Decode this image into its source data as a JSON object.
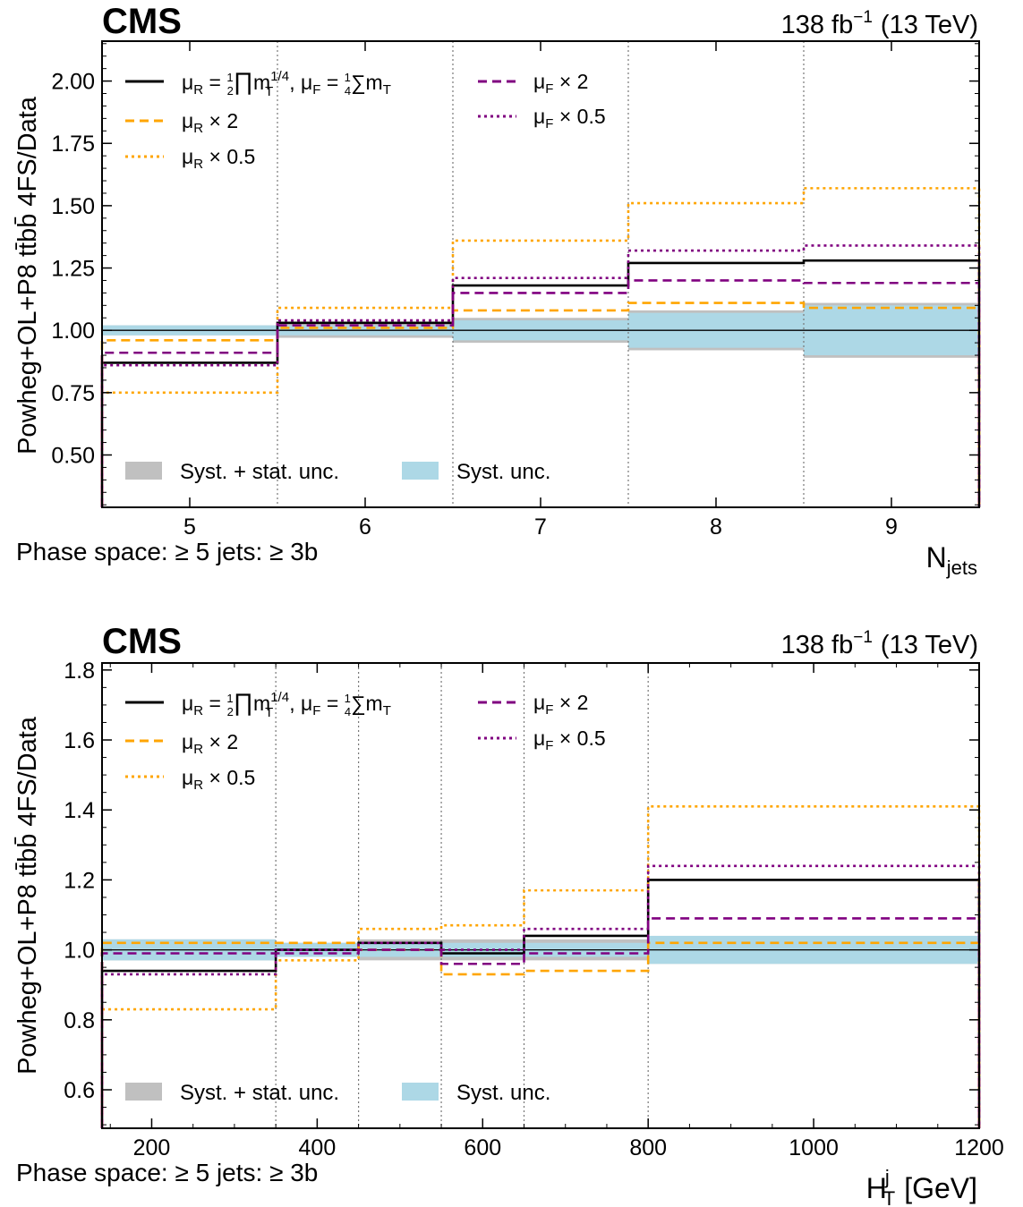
{
  "colors": {
    "nominal": "#000000",
    "mur": "#ffa500",
    "muf": "#800080",
    "syst_stat": "#c0c0c0",
    "syst": "#add8e6",
    "grid": "#777777"
  },
  "chart_data": [
    {
      "type": "step",
      "experiment": "CMS",
      "lumi_value": "138 fb",
      "lumi_exp": "−1",
      "energy": "(13 TeV)",
      "ylabel": "Powheg+OL+P8 tt̄bb̄ 4FS/Data",
      "xlabel": "N",
      "xlabel_sub": "jets",
      "phase_space": "Phase space:  ≥ 5 jets:  ≥ 3b",
      "xlim": [
        4.5,
        9.5
      ],
      "ylim": [
        0.29,
        2.16
      ],
      "x_ticks": [
        5,
        6,
        7,
        8,
        9
      ],
      "x_tick_labels": [
        "5",
        "6",
        "7",
        "8",
        "9"
      ],
      "x_minor_ticks": [],
      "y_ticks": [
        0.5,
        0.75,
        1.0,
        1.25,
        1.5,
        1.75,
        2.0
      ],
      "y_tick_labels": [
        "0.50",
        "0.75",
        "1.00",
        "1.25",
        "1.50",
        "1.75",
        "2.00"
      ],
      "y_minor_step": 0.05,
      "bin_edges": [
        4.5,
        5.5,
        6.5,
        7.5,
        8.5,
        9.5
      ],
      "grid_x": [
        5.5,
        6.5,
        7.5,
        8.5
      ],
      "bands": {
        "syst_stat": {
          "label": "Syst. + stat. unc.",
          "low": [
            0.98,
            0.97,
            0.95,
            0.92,
            0.89
          ],
          "high": [
            1.02,
            1.03,
            1.05,
            1.08,
            1.11
          ]
        },
        "syst": {
          "label": "Syst. unc.",
          "low": [
            0.98,
            0.98,
            0.96,
            0.93,
            0.9
          ],
          "high": [
            1.02,
            1.02,
            1.04,
            1.07,
            1.1
          ]
        }
      },
      "series": [
        {
          "name": "nominal",
          "color_key": "nominal",
          "dash": "solid",
          "width": 2.6,
          "values": [
            0.87,
            1.03,
            1.18,
            1.27,
            1.28
          ]
        },
        {
          "name": "mur_up",
          "color_key": "mur",
          "dash": "dashed",
          "width": 2.6,
          "values": [
            0.96,
            1.01,
            1.08,
            1.11,
            1.09
          ]
        },
        {
          "name": "mur_down",
          "color_key": "mur",
          "dash": "dotted",
          "width": 2.6,
          "values": [
            0.75,
            1.09,
            1.36,
            1.51,
            1.57
          ]
        },
        {
          "name": "muf_up",
          "color_key": "muf",
          "dash": "dashed",
          "width": 2.6,
          "values": [
            0.91,
            1.02,
            1.15,
            1.2,
            1.19
          ]
        },
        {
          "name": "muf_down",
          "color_key": "muf",
          "dash": "dotted",
          "width": 2.6,
          "values": [
            0.86,
            1.04,
            1.21,
            1.32,
            1.34
          ]
        }
      ]
    },
    {
      "type": "step",
      "experiment": "CMS",
      "lumi_value": "138 fb",
      "lumi_exp": "−1",
      "energy": "(13 TeV)",
      "ylabel": "Powheg+OL+P8 tt̄bb̄ 4FS/Data",
      "xlabel": "H",
      "xlabel_sub": "T",
      "xlabel_sup": "j",
      "xlabel_unit": "[GeV]",
      "phase_space": "Phase space:  ≥ 5 jets:  ≥ 3b",
      "xlim": [
        140,
        1200
      ],
      "ylim": [
        0.49,
        1.82
      ],
      "x_ticks": [
        200,
        400,
        600,
        800,
        1000,
        1200
      ],
      "x_tick_labels": [
        "200",
        "400",
        "600",
        "800",
        "1000",
        "1200"
      ],
      "x_minor_ticks": [
        150,
        250,
        300,
        350,
        450,
        500,
        550,
        650,
        700,
        750,
        850,
        900,
        950,
        1050,
        1100,
        1150
      ],
      "y_ticks": [
        0.6,
        0.8,
        1.0,
        1.2,
        1.4,
        1.6,
        1.8
      ],
      "y_tick_labels": [
        "0.6",
        "0.8",
        "1.0",
        "1.2",
        "1.4",
        "1.6",
        "1.8"
      ],
      "y_minor_step": 0.05,
      "bin_edges": [
        140,
        350,
        450,
        550,
        650,
        800,
        1200
      ],
      "grid_x": [
        350,
        450,
        550,
        650,
        800
      ],
      "bands": {
        "syst_stat": {
          "label": "Syst. + stat. unc.",
          "low": [
            0.97,
            0.98,
            0.97,
            0.97,
            0.97,
            0.96
          ],
          "high": [
            1.03,
            1.02,
            1.03,
            1.03,
            1.03,
            1.04
          ]
        },
        "syst": {
          "label": "Syst. unc.",
          "low": [
            0.97,
            0.98,
            0.98,
            0.98,
            0.98,
            0.96
          ],
          "high": [
            1.03,
            1.02,
            1.02,
            1.02,
            1.02,
            1.04
          ]
        }
      },
      "series": [
        {
          "name": "nominal",
          "color_key": "nominal",
          "dash": "solid",
          "width": 2.6,
          "values": [
            0.94,
            1.0,
            1.02,
            0.99,
            1.04,
            1.2
          ]
        },
        {
          "name": "mur_up",
          "color_key": "mur",
          "dash": "dashed",
          "width": 2.6,
          "values": [
            1.02,
            1.02,
            1.0,
            0.93,
            0.94,
            1.02
          ]
        },
        {
          "name": "mur_down",
          "color_key": "mur",
          "dash": "dotted",
          "width": 2.6,
          "values": [
            0.83,
            0.97,
            1.06,
            1.07,
            1.17,
            1.41
          ]
        },
        {
          "name": "muf_up",
          "color_key": "muf",
          "dash": "dashed",
          "width": 2.6,
          "values": [
            0.99,
            0.99,
            1.0,
            0.96,
            0.99,
            1.09
          ]
        },
        {
          "name": "muf_down",
          "color_key": "muf",
          "dash": "dotted",
          "width": 2.6,
          "values": [
            0.93,
            1.0,
            1.02,
            1.0,
            1.06,
            1.24
          ]
        }
      ]
    }
  ],
  "legend": {
    "nominal": {
      "mu": "μ",
      "r": "R",
      "eq": " = ",
      "half_num": "1",
      "half_den": "2",
      "prod": "∏",
      "m": "m",
      "m_sub": "T",
      "m_sup": "1/4",
      "comma": ", ",
      "f": "F",
      "quarter_num": "1",
      "quarter_den": "4",
      "sum": "∑",
      "mt": "m",
      "mt_sub": "T"
    },
    "mur_up": {
      "mu": "μ",
      "sub": "R",
      "rest": " × 2"
    },
    "mur_down": {
      "mu": "μ",
      "sub": "R",
      "rest": " × 0.5"
    },
    "muf_up": {
      "mu": "μ",
      "sub": "F",
      "rest": " × 2"
    },
    "muf_down": {
      "mu": "μ",
      "sub": "F",
      "rest": " × 0.5"
    }
  }
}
